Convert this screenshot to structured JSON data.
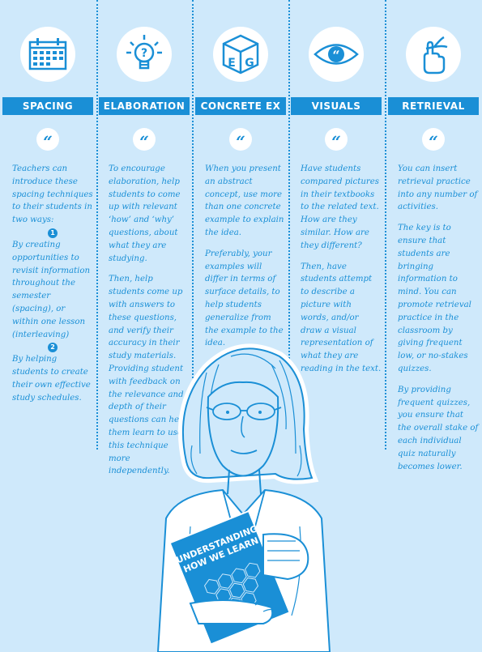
{
  "columns": [
    {
      "label": "SPACING",
      "icon": "calendar-icon",
      "paragraphs": [
        "Teachers can introduce these spacing techniques to their students in two ways:",
        "By creating opportunities to revisit information throughout the semester (spacing), or within one lesson (interleaving)",
        "By helping students to create their own effective study schedules."
      ],
      "numbers": [
        "1",
        "2"
      ]
    },
    {
      "label": "ELABORATION",
      "icon": "lightbulb-question-icon",
      "paragraphs": [
        "To encourage elaboration, help students to come up with relevant ‘how’ and ‘why’ questions, about what they are studying.",
        "Then, help students come up with answers to these questions, and verify their accuracy in their study materials. Providing student with feedback on the relevance and depth of their questions can help them learn to use this technique more independently."
      ]
    },
    {
      "label": "CONCRETE EX",
      "icon": "eg-cube-icon",
      "paragraphs": [
        "When you present an abstract concept, use more than one concrete example to explain the idea.",
        "Preferably, your examples will differ in terms of surface details, to help students generalize from the example to the idea."
      ]
    },
    {
      "label": "VISUALS",
      "icon": "eye-icon",
      "paragraphs": [
        "Have students compared pictures in their textbooks to the related text. How are they similar. How are they different?",
        "Then, have students attempt to describe a picture with words, and/or draw a visual representation of what they are reading in the text."
      ]
    },
    {
      "label": "RETRIEVAL",
      "icon": "finger-string-icon",
      "paragraphs": [
        "You can insert retrieval practice into any number of activities.",
        "The key is to ensure that students are bringing information to mind. You can promote retrieval practice in the classroom by giving frequent low, or no-stakes quizzes.",
        "By providing frequent quizzes, you ensure that the overall stake of each individual quiz naturally becomes lower."
      ]
    }
  ],
  "quote_mark": "“",
  "book": {
    "title_line1": "UNDERSTANDING",
    "title_line2": "HOW WE LEARN"
  },
  "icon_text": {
    "eg_e": "E",
    "eg_g": "G",
    "question": "?"
  },
  "colors": {
    "background": "#cfe9fb",
    "accent": "#1a8fd6",
    "white": "#ffffff"
  }
}
